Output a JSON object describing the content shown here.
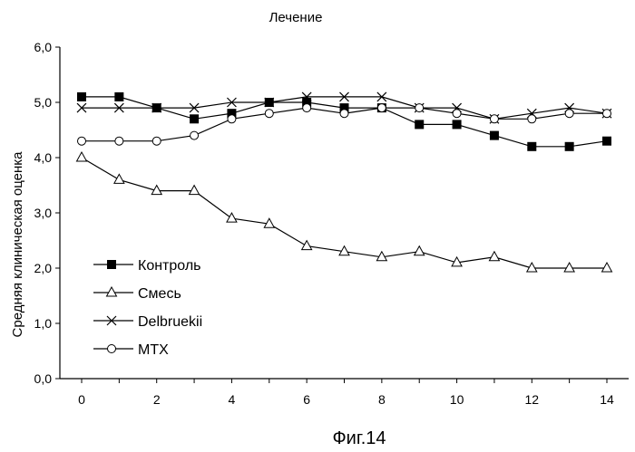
{
  "chart_data": {
    "type": "line",
    "title": "Лечение",
    "xlabel": "",
    "ylabel": "Средняя клиническая оценка",
    "caption": "Фиг.14",
    "x": [
      0,
      1,
      2,
      3,
      4,
      5,
      6,
      7,
      8,
      9,
      10,
      11,
      12,
      13,
      14
    ],
    "xticks": [
      "0",
      "2",
      "4",
      "6",
      "8",
      "10",
      "12",
      "14"
    ],
    "yticks": [
      "0,0",
      "1,0",
      "2,0",
      "3,0",
      "4,0",
      "5,0",
      "6,0"
    ],
    "xlim": [
      0,
      14
    ],
    "ylim": [
      0,
      6
    ],
    "grid": false,
    "legend_position": "bottom-left",
    "series": [
      {
        "name": "Контроль",
        "marker": "square-filled",
        "values": [
          5.1,
          5.1,
          4.9,
          4.7,
          4.8,
          5.0,
          5.0,
          4.9,
          4.9,
          4.6,
          4.6,
          4.4,
          4.2,
          4.2,
          4.3
        ]
      },
      {
        "name": "Смесь",
        "marker": "triangle-open",
        "values": [
          4.0,
          3.6,
          3.4,
          3.4,
          2.9,
          2.8,
          2.4,
          2.3,
          2.2,
          2.3,
          2.1,
          2.2,
          2.0,
          2.0,
          2.0
        ]
      },
      {
        "name": "Delbruekii",
        "marker": "x",
        "values": [
          4.9,
          4.9,
          4.9,
          4.9,
          5.0,
          5.0,
          5.1,
          5.1,
          5.1,
          4.9,
          4.9,
          4.7,
          4.8,
          4.9,
          4.8
        ]
      },
      {
        "name": "MTX",
        "marker": "circle-open",
        "values": [
          4.3,
          4.3,
          4.3,
          4.4,
          4.7,
          4.8,
          4.9,
          4.8,
          4.9,
          4.9,
          4.8,
          4.7,
          4.7,
          4.8,
          4.8
        ]
      }
    ]
  }
}
